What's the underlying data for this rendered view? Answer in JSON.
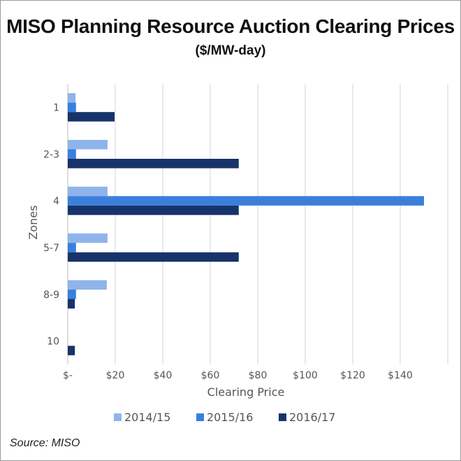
{
  "chart_data": {
    "type": "bar",
    "orientation": "horizontal",
    "title": "MISO Planning Resource Auction Clearing Prices",
    "subtitle": "($/MW-day)",
    "xlabel": "Clearing Price",
    "ylabel": "Zones",
    "categories": [
      "1",
      "2-3",
      "4",
      "5-7",
      "8-9",
      "10"
    ],
    "series": [
      {
        "name": "2014/15",
        "color": "#8fb4ec",
        "values": [
          3.29,
          16.75,
          16.75,
          16.75,
          16.44,
          0
        ]
      },
      {
        "name": "2015/16",
        "color": "#3a7fdc",
        "values": [
          3.48,
          3.48,
          150,
          3.48,
          3.48,
          0
        ]
      },
      {
        "name": "2016/17",
        "color": "#17336a",
        "values": [
          19.72,
          72,
          72,
          72,
          2.99,
          2.99
        ]
      }
    ],
    "xlim": [
      0,
      160
    ],
    "x_ticks": [
      0,
      20,
      40,
      60,
      80,
      100,
      120,
      140,
      160
    ],
    "x_tick_labels": [
      "$-",
      "$20",
      "$40",
      "$60",
      "$80",
      "$100",
      "$120",
      "$140",
      ""
    ],
    "grid": "vertical",
    "legend_position": "bottom"
  },
  "source": "Source: MISO"
}
